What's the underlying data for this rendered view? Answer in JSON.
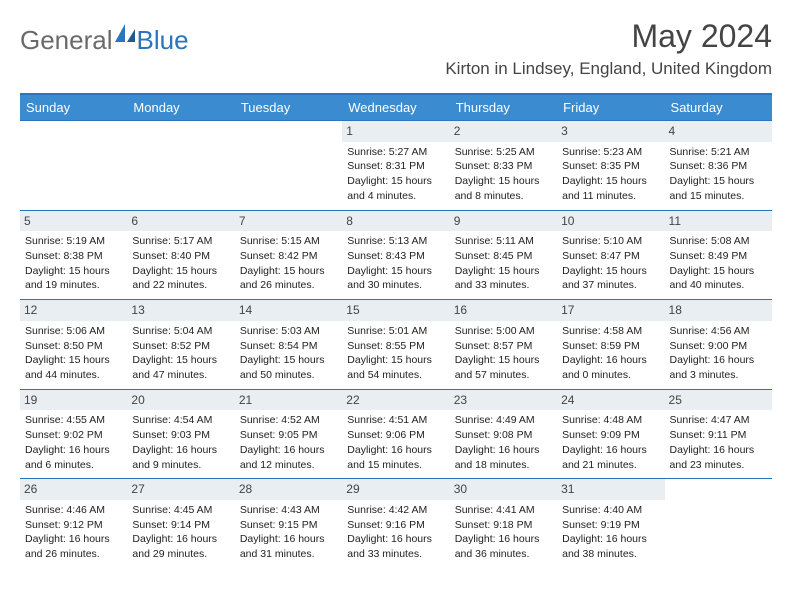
{
  "logo": {
    "part1": "General",
    "part2": "Blue"
  },
  "title": "May 2024",
  "location": "Kirton in Lindsey, England, United Kingdom",
  "colors": {
    "header_bg": "#3b8bd0",
    "header_border": "#2a75bb",
    "daynum_bg": "#e9eef2",
    "text": "#444444"
  },
  "days_of_week": [
    "Sunday",
    "Monday",
    "Tuesday",
    "Wednesday",
    "Thursday",
    "Friday",
    "Saturday"
  ],
  "weeks": [
    [
      {
        "n": "",
        "l1": "",
        "l2": "",
        "l3": "",
        "l4": "",
        "empty": true
      },
      {
        "n": "",
        "l1": "",
        "l2": "",
        "l3": "",
        "l4": "",
        "empty": true
      },
      {
        "n": "",
        "l1": "",
        "l2": "",
        "l3": "",
        "l4": "",
        "empty": true
      },
      {
        "n": "1",
        "l1": "Sunrise: 5:27 AM",
        "l2": "Sunset: 8:31 PM",
        "l3": "Daylight: 15 hours",
        "l4": "and 4 minutes."
      },
      {
        "n": "2",
        "l1": "Sunrise: 5:25 AM",
        "l2": "Sunset: 8:33 PM",
        "l3": "Daylight: 15 hours",
        "l4": "and 8 minutes."
      },
      {
        "n": "3",
        "l1": "Sunrise: 5:23 AM",
        "l2": "Sunset: 8:35 PM",
        "l3": "Daylight: 15 hours",
        "l4": "and 11 minutes."
      },
      {
        "n": "4",
        "l1": "Sunrise: 5:21 AM",
        "l2": "Sunset: 8:36 PM",
        "l3": "Daylight: 15 hours",
        "l4": "and 15 minutes."
      }
    ],
    [
      {
        "n": "5",
        "l1": "Sunrise: 5:19 AM",
        "l2": "Sunset: 8:38 PM",
        "l3": "Daylight: 15 hours",
        "l4": "and 19 minutes."
      },
      {
        "n": "6",
        "l1": "Sunrise: 5:17 AM",
        "l2": "Sunset: 8:40 PM",
        "l3": "Daylight: 15 hours",
        "l4": "and 22 minutes."
      },
      {
        "n": "7",
        "l1": "Sunrise: 5:15 AM",
        "l2": "Sunset: 8:42 PM",
        "l3": "Daylight: 15 hours",
        "l4": "and 26 minutes."
      },
      {
        "n": "8",
        "l1": "Sunrise: 5:13 AM",
        "l2": "Sunset: 8:43 PM",
        "l3": "Daylight: 15 hours",
        "l4": "and 30 minutes."
      },
      {
        "n": "9",
        "l1": "Sunrise: 5:11 AM",
        "l2": "Sunset: 8:45 PM",
        "l3": "Daylight: 15 hours",
        "l4": "and 33 minutes."
      },
      {
        "n": "10",
        "l1": "Sunrise: 5:10 AM",
        "l2": "Sunset: 8:47 PM",
        "l3": "Daylight: 15 hours",
        "l4": "and 37 minutes."
      },
      {
        "n": "11",
        "l1": "Sunrise: 5:08 AM",
        "l2": "Sunset: 8:49 PM",
        "l3": "Daylight: 15 hours",
        "l4": "and 40 minutes."
      }
    ],
    [
      {
        "n": "12",
        "l1": "Sunrise: 5:06 AM",
        "l2": "Sunset: 8:50 PM",
        "l3": "Daylight: 15 hours",
        "l4": "and 44 minutes."
      },
      {
        "n": "13",
        "l1": "Sunrise: 5:04 AM",
        "l2": "Sunset: 8:52 PM",
        "l3": "Daylight: 15 hours",
        "l4": "and 47 minutes."
      },
      {
        "n": "14",
        "l1": "Sunrise: 5:03 AM",
        "l2": "Sunset: 8:54 PM",
        "l3": "Daylight: 15 hours",
        "l4": "and 50 minutes."
      },
      {
        "n": "15",
        "l1": "Sunrise: 5:01 AM",
        "l2": "Sunset: 8:55 PM",
        "l3": "Daylight: 15 hours",
        "l4": "and 54 minutes."
      },
      {
        "n": "16",
        "l1": "Sunrise: 5:00 AM",
        "l2": "Sunset: 8:57 PM",
        "l3": "Daylight: 15 hours",
        "l4": "and 57 minutes."
      },
      {
        "n": "17",
        "l1": "Sunrise: 4:58 AM",
        "l2": "Sunset: 8:59 PM",
        "l3": "Daylight: 16 hours",
        "l4": "and 0 minutes."
      },
      {
        "n": "18",
        "l1": "Sunrise: 4:56 AM",
        "l2": "Sunset: 9:00 PM",
        "l3": "Daylight: 16 hours",
        "l4": "and 3 minutes."
      }
    ],
    [
      {
        "n": "19",
        "l1": "Sunrise: 4:55 AM",
        "l2": "Sunset: 9:02 PM",
        "l3": "Daylight: 16 hours",
        "l4": "and 6 minutes."
      },
      {
        "n": "20",
        "l1": "Sunrise: 4:54 AM",
        "l2": "Sunset: 9:03 PM",
        "l3": "Daylight: 16 hours",
        "l4": "and 9 minutes."
      },
      {
        "n": "21",
        "l1": "Sunrise: 4:52 AM",
        "l2": "Sunset: 9:05 PM",
        "l3": "Daylight: 16 hours",
        "l4": "and 12 minutes."
      },
      {
        "n": "22",
        "l1": "Sunrise: 4:51 AM",
        "l2": "Sunset: 9:06 PM",
        "l3": "Daylight: 16 hours",
        "l4": "and 15 minutes."
      },
      {
        "n": "23",
        "l1": "Sunrise: 4:49 AM",
        "l2": "Sunset: 9:08 PM",
        "l3": "Daylight: 16 hours",
        "l4": "and 18 minutes."
      },
      {
        "n": "24",
        "l1": "Sunrise: 4:48 AM",
        "l2": "Sunset: 9:09 PM",
        "l3": "Daylight: 16 hours",
        "l4": "and 21 minutes."
      },
      {
        "n": "25",
        "l1": "Sunrise: 4:47 AM",
        "l2": "Sunset: 9:11 PM",
        "l3": "Daylight: 16 hours",
        "l4": "and 23 minutes."
      }
    ],
    [
      {
        "n": "26",
        "l1": "Sunrise: 4:46 AM",
        "l2": "Sunset: 9:12 PM",
        "l3": "Daylight: 16 hours",
        "l4": "and 26 minutes."
      },
      {
        "n": "27",
        "l1": "Sunrise: 4:45 AM",
        "l2": "Sunset: 9:14 PM",
        "l3": "Daylight: 16 hours",
        "l4": "and 29 minutes."
      },
      {
        "n": "28",
        "l1": "Sunrise: 4:43 AM",
        "l2": "Sunset: 9:15 PM",
        "l3": "Daylight: 16 hours",
        "l4": "and 31 minutes."
      },
      {
        "n": "29",
        "l1": "Sunrise: 4:42 AM",
        "l2": "Sunset: 9:16 PM",
        "l3": "Daylight: 16 hours",
        "l4": "and 33 minutes."
      },
      {
        "n": "30",
        "l1": "Sunrise: 4:41 AM",
        "l2": "Sunset: 9:18 PM",
        "l3": "Daylight: 16 hours",
        "l4": "and 36 minutes."
      },
      {
        "n": "31",
        "l1": "Sunrise: 4:40 AM",
        "l2": "Sunset: 9:19 PM",
        "l3": "Daylight: 16 hours",
        "l4": "and 38 minutes."
      },
      {
        "n": "",
        "l1": "",
        "l2": "",
        "l3": "",
        "l4": "",
        "empty": true
      }
    ]
  ]
}
